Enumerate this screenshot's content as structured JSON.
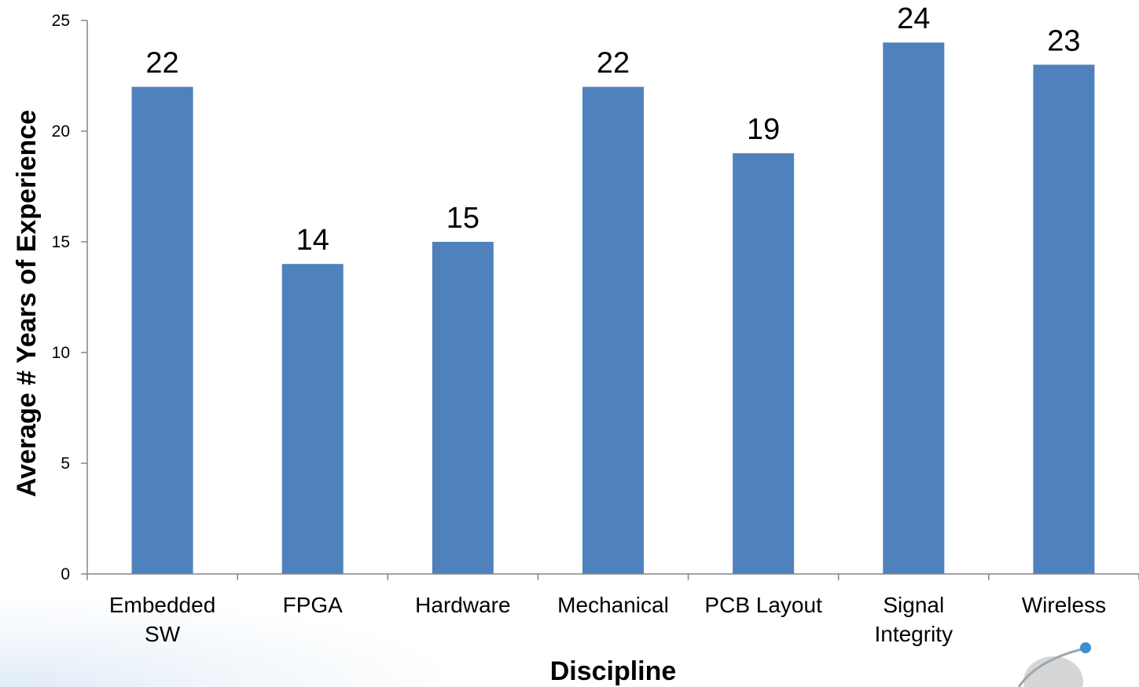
{
  "chart_data": {
    "type": "bar",
    "categories": [
      [
        "Embedded",
        "SW"
      ],
      [
        "FPGA"
      ],
      [
        "Hardware"
      ],
      [
        "Mechanical"
      ],
      [
        "PCB Layout"
      ],
      [
        "Signal",
        "Integrity"
      ],
      [
        "Wireless"
      ]
    ],
    "values": [
      22,
      14,
      15,
      22,
      19,
      24,
      23
    ],
    "data_labels": [
      "22",
      "14",
      "15",
      "22",
      "19",
      "24",
      "23"
    ],
    "xlabel": "Discipline",
    "ylabel": "Average # Years of Experience",
    "ylim": [
      0,
      25
    ],
    "yticks": [
      0,
      5,
      10,
      15,
      20,
      25
    ],
    "grid": false,
    "legend": "none",
    "bar_color": "#4F81BD",
    "axis_color": "#868686"
  }
}
